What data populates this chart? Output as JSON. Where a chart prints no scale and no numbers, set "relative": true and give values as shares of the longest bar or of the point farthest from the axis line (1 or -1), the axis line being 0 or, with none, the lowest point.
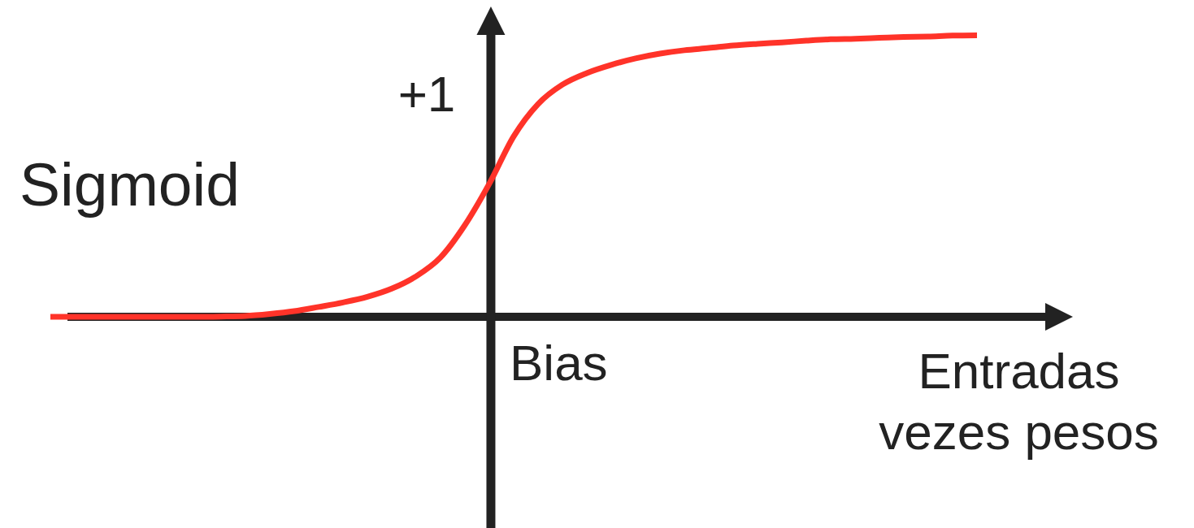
{
  "chart_data": {
    "type": "line",
    "title": "Sigmoid",
    "xlabel": "Entradas\nvezes pesos",
    "annotations": [
      "+1",
      "Bias"
    ],
    "relative": true,
    "color": "#ff3329",
    "categories": [
      null,
      null,
      null,
      null,
      null,
      null,
      null,
      null,
      null,
      null,
      null,
      null,
      null,
      null,
      null,
      null,
      null,
      null,
      null,
      null,
      null,
      null,
      null,
      null,
      null,
      null,
      null,
      null,
      null,
      null,
      null,
      null,
      null,
      null,
      null,
      null,
      null,
      null,
      null
    ],
    "values": [
      0,
      0,
      0,
      0,
      0,
      0,
      0,
      0.001,
      0.003,
      0.01,
      0.02,
      0.035,
      0.051,
      0.071,
      0.1,
      0.144,
      0.211,
      0.326,
      0.473,
      0.641,
      0.756,
      0.825,
      0.866,
      0.895,
      0.918,
      0.935,
      0.947,
      0.955,
      0.964,
      0.97,
      0.975,
      0.981,
      0.986,
      0.988,
      0.991,
      0.994,
      0.996,
      0.999,
      1
    ]
  }
}
